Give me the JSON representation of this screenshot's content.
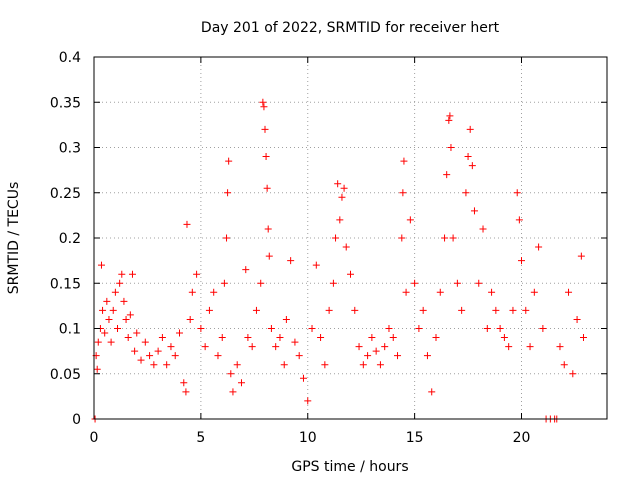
{
  "chart_data": {
    "type": "scatter",
    "title": "Day 201 of 2022, SRMTID for receiver hert",
    "xlabel": "GPS time / hours",
    "ylabel": "SRMTID / TECUs",
    "xlim": [
      0,
      24
    ],
    "ylim": [
      0,
      0.4
    ],
    "x_ticks": [
      0,
      5,
      10,
      15,
      20
    ],
    "x_tick_labels": [
      "0",
      "5",
      "10",
      "15",
      "20"
    ],
    "y_ticks": [
      0,
      0.05,
      0.1,
      0.15,
      0.2,
      0.25,
      0.3,
      0.35,
      0.4
    ],
    "y_tick_labels": [
      "0",
      "0.05",
      "0.1",
      "0.15",
      "0.2",
      "0.25",
      "0.3",
      "0.35",
      "0.4"
    ],
    "grid": true,
    "marker": "plus",
    "series": [
      {
        "name": "SRMTID",
        "color": "#ff0000",
        "points": [
          [
            0.05,
            0.0
          ],
          [
            0.1,
            0.07
          ],
          [
            0.15,
            0.055
          ],
          [
            0.2,
            0.085
          ],
          [
            0.3,
            0.1
          ],
          [
            0.35,
            0.17
          ],
          [
            0.4,
            0.12
          ],
          [
            0.5,
            0.095
          ],
          [
            0.6,
            0.13
          ],
          [
            0.7,
            0.11
          ],
          [
            0.8,
            0.085
          ],
          [
            0.9,
            0.12
          ],
          [
            1.0,
            0.14
          ],
          [
            1.1,
            0.1
          ],
          [
            1.2,
            0.15
          ],
          [
            1.3,
            0.16
          ],
          [
            1.4,
            0.13
          ],
          [
            1.5,
            0.11
          ],
          [
            1.6,
            0.09
          ],
          [
            1.7,
            0.115
          ],
          [
            1.8,
            0.16
          ],
          [
            1.9,
            0.075
          ],
          [
            2.0,
            0.095
          ],
          [
            2.2,
            0.065
          ],
          [
            2.4,
            0.085
          ],
          [
            2.6,
            0.07
          ],
          [
            2.8,
            0.06
          ],
          [
            3.0,
            0.075
          ],
          [
            3.2,
            0.09
          ],
          [
            3.4,
            0.06
          ],
          [
            3.6,
            0.08
          ],
          [
            3.8,
            0.07
          ],
          [
            4.0,
            0.095
          ],
          [
            4.2,
            0.04
          ],
          [
            4.3,
            0.03
          ],
          [
            4.35,
            0.215
          ],
          [
            4.5,
            0.11
          ],
          [
            4.6,
            0.14
          ],
          [
            4.8,
            0.16
          ],
          [
            5.0,
            0.1
          ],
          [
            5.2,
            0.08
          ],
          [
            5.4,
            0.12
          ],
          [
            5.6,
            0.14
          ],
          [
            5.8,
            0.07
          ],
          [
            6.0,
            0.09
          ],
          [
            6.1,
            0.15
          ],
          [
            6.2,
            0.2
          ],
          [
            6.25,
            0.25
          ],
          [
            6.3,
            0.285
          ],
          [
            6.4,
            0.05
          ],
          [
            6.5,
            0.03
          ],
          [
            6.7,
            0.06
          ],
          [
            6.9,
            0.04
          ],
          [
            7.1,
            0.165
          ],
          [
            7.2,
            0.09
          ],
          [
            7.4,
            0.08
          ],
          [
            7.6,
            0.12
          ],
          [
            7.8,
            0.15
          ],
          [
            7.9,
            0.35
          ],
          [
            7.95,
            0.345
          ],
          [
            8.0,
            0.32
          ],
          [
            8.05,
            0.29
          ],
          [
            8.1,
            0.255
          ],
          [
            8.15,
            0.21
          ],
          [
            8.2,
            0.18
          ],
          [
            8.3,
            0.1
          ],
          [
            8.5,
            0.08
          ],
          [
            8.7,
            0.09
          ],
          [
            8.9,
            0.06
          ],
          [
            9.0,
            0.11
          ],
          [
            9.2,
            0.175
          ],
          [
            9.4,
            0.085
          ],
          [
            9.6,
            0.07
          ],
          [
            9.8,
            0.045
          ],
          [
            10.0,
            0.02
          ],
          [
            10.2,
            0.1
          ],
          [
            10.4,
            0.17
          ],
          [
            10.6,
            0.09
          ],
          [
            10.8,
            0.06
          ],
          [
            11.0,
            0.12
          ],
          [
            11.2,
            0.15
          ],
          [
            11.3,
            0.2
          ],
          [
            11.4,
            0.26
          ],
          [
            11.5,
            0.22
          ],
          [
            11.6,
            0.245
          ],
          [
            11.7,
            0.255
          ],
          [
            11.8,
            0.19
          ],
          [
            12.0,
            0.16
          ],
          [
            12.2,
            0.12
          ],
          [
            12.4,
            0.08
          ],
          [
            12.6,
            0.06
          ],
          [
            12.8,
            0.07
          ],
          [
            13.0,
            0.09
          ],
          [
            13.2,
            0.075
          ],
          [
            13.4,
            0.06
          ],
          [
            13.6,
            0.08
          ],
          [
            13.8,
            0.1
          ],
          [
            14.0,
            0.09
          ],
          [
            14.2,
            0.07
          ],
          [
            14.4,
            0.2
          ],
          [
            14.45,
            0.25
          ],
          [
            14.5,
            0.285
          ],
          [
            14.6,
            0.14
          ],
          [
            14.8,
            0.22
          ],
          [
            15.0,
            0.15
          ],
          [
            15.2,
            0.1
          ],
          [
            15.4,
            0.12
          ],
          [
            15.6,
            0.07
          ],
          [
            15.8,
            0.03
          ],
          [
            16.0,
            0.09
          ],
          [
            16.2,
            0.14
          ],
          [
            16.4,
            0.2
          ],
          [
            16.5,
            0.27
          ],
          [
            16.6,
            0.33
          ],
          [
            16.65,
            0.335
          ],
          [
            16.7,
            0.3
          ],
          [
            16.8,
            0.2
          ],
          [
            17.0,
            0.15
          ],
          [
            17.2,
            0.12
          ],
          [
            17.4,
            0.25
          ],
          [
            17.5,
            0.29
          ],
          [
            17.6,
            0.32
          ],
          [
            17.7,
            0.28
          ],
          [
            17.8,
            0.23
          ],
          [
            18.0,
            0.15
          ],
          [
            18.2,
            0.21
          ],
          [
            18.4,
            0.1
          ],
          [
            18.6,
            0.14
          ],
          [
            18.8,
            0.12
          ],
          [
            19.0,
            0.1
          ],
          [
            19.2,
            0.09
          ],
          [
            19.4,
            0.08
          ],
          [
            19.6,
            0.12
          ],
          [
            19.8,
            0.25
          ],
          [
            19.9,
            0.22
          ],
          [
            20.0,
            0.175
          ],
          [
            20.2,
            0.12
          ],
          [
            20.4,
            0.08
          ],
          [
            20.6,
            0.14
          ],
          [
            20.8,
            0.19
          ],
          [
            21.0,
            0.1
          ],
          [
            21.15,
            0.0
          ],
          [
            21.35,
            0.0
          ],
          [
            21.55,
            0.0
          ],
          [
            21.65,
            0.0
          ],
          [
            21.8,
            0.08
          ],
          [
            22.0,
            0.06
          ],
          [
            22.2,
            0.14
          ],
          [
            22.4,
            0.05
          ],
          [
            22.6,
            0.11
          ],
          [
            22.8,
            0.18
          ],
          [
            22.9,
            0.09
          ]
        ]
      }
    ]
  }
}
